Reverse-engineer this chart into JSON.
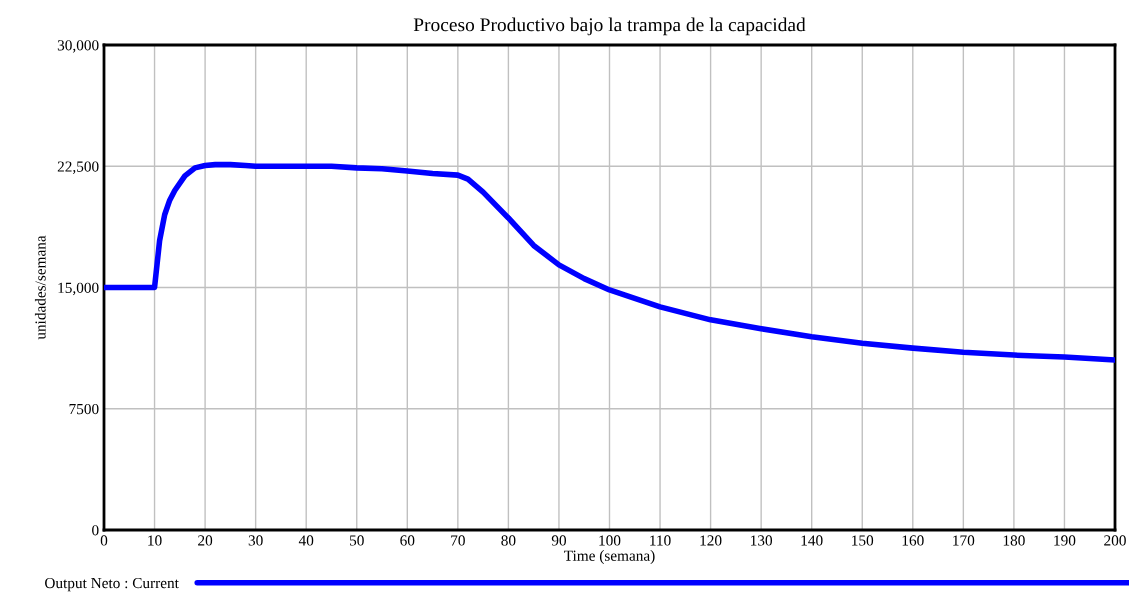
{
  "chart_data": {
    "type": "line",
    "title": "Proceso Productivo bajo la trampa de la capacidad",
    "xlabel": "Time (semana)",
    "ylabel": "unidades/semana",
    "x": [
      0,
      5,
      10,
      11,
      12,
      13,
      14,
      16,
      18,
      20,
      22,
      25,
      28,
      30,
      40,
      45,
      50,
      55,
      60,
      65,
      70,
      72,
      75,
      80,
      85,
      90,
      95,
      100,
      110,
      120,
      130,
      140,
      150,
      160,
      170,
      180,
      190,
      200
    ],
    "series": [
      {
        "name": "Output Neto : Current",
        "color": "#0000ff",
        "values": [
          15000,
          15000,
          15000,
          17900,
          19500,
          20400,
          21000,
          21900,
          22400,
          22550,
          22600,
          22600,
          22550,
          22500,
          22500,
          22500,
          22400,
          22350,
          22200,
          22050,
          21950,
          21700,
          20900,
          19300,
          17600,
          16400,
          15550,
          14850,
          13800,
          13000,
          12450,
          11950,
          11550,
          11250,
          11000,
          10820,
          10700,
          10520
        ]
      }
    ],
    "xlim": [
      0,
      200
    ],
    "ylim": [
      0,
      30000
    ],
    "xticks": [
      0,
      10,
      20,
      30,
      40,
      50,
      60,
      70,
      80,
      90,
      100,
      110,
      120,
      130,
      140,
      150,
      160,
      170,
      180,
      190,
      200
    ],
    "yticks": [
      0,
      7500,
      {
        "value": 15000,
        "label": "15,000"
      },
      {
        "value": 22500,
        "label": "22,500"
      },
      {
        "value": 30000,
        "label": "30,000"
      }
    ],
    "grid": true,
    "legend": "bottom left",
    "marker": "none",
    "line_style": "solid"
  }
}
